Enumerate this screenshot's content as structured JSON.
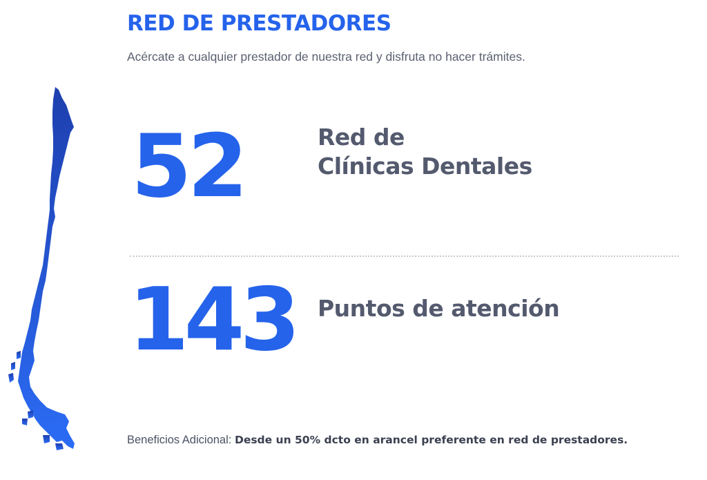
{
  "header": {
    "title": "RED DE PRESTADORES",
    "subtitle": "Acércate a cualquier prestador de nuestra red y disfruta no hacer trámites."
  },
  "map": {
    "icon": "chile-map-icon",
    "color_top": "#1e3fae",
    "color_bottom": "#2b6cf5"
  },
  "stats": [
    {
      "number": "52",
      "label_line1": "Red de",
      "label_line2": "Clínicas Dentales"
    },
    {
      "number": "143",
      "label": "Puntos de atención"
    }
  ],
  "footer": {
    "label": "Beneficios Adicional:",
    "text": "Desde un 50% dcto en arancel preferente en red de prestadores."
  },
  "colors": {
    "accent": "#2563eb",
    "label": "#545a6e",
    "muted": "#5b6070"
  }
}
